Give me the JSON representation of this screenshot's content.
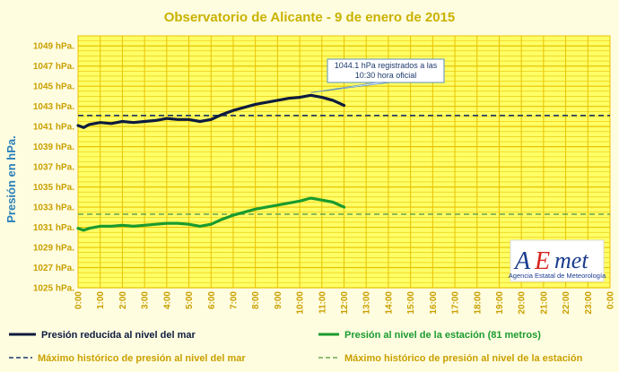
{
  "chart_data": {
    "type": "line",
    "title": "Observatorio de Alicante - 9 de enero de 2015",
    "ylabel": "Presión en hPa.",
    "y_ticks": [
      "1025 hPa.",
      "1027 hPa.",
      "1029 hPa.",
      "1031 hPa.",
      "1033 hPa.",
      "1035 hPa.",
      "1037 hPa.",
      "1039 hPa.",
      "1041 hPa.",
      "1043 hPa.",
      "1045 hPa.",
      "1047 hPa.",
      "1049 hPa."
    ],
    "x_ticks": [
      "0:00",
      "1:00",
      "2:00",
      "3:00",
      "4:00",
      "5:00",
      "6:00",
      "7:00",
      "8:00",
      "9:00",
      "10:00",
      "11:00",
      "12:00",
      "13:00",
      "14:00",
      "15:00",
      "16:00",
      "17:00",
      "18:00",
      "19:00",
      "20:00",
      "21:00",
      "22:00",
      "23:00",
      "0:00"
    ],
    "ylim": [
      1025,
      1050
    ],
    "xlim": [
      0,
      24
    ],
    "grid": true,
    "series": [
      {
        "name": "Presión reducida al nivel del mar",
        "color": "#0d1b3e",
        "style": "solid",
        "x": [
          0,
          0.25,
          0.5,
          1,
          1.5,
          2,
          2.5,
          3,
          3.5,
          4,
          4.5,
          5,
          5.5,
          6,
          6.5,
          7,
          7.5,
          8,
          8.5,
          9,
          9.5,
          10,
          10.5,
          11,
          11.5,
          12
        ],
        "values": [
          1041.1,
          1040.9,
          1041.2,
          1041.4,
          1041.3,
          1041.5,
          1041.4,
          1041.5,
          1041.6,
          1041.8,
          1041.7,
          1041.7,
          1041.5,
          1041.7,
          1042.2,
          1042.6,
          1042.9,
          1043.2,
          1043.4,
          1043.6,
          1043.8,
          1043.9,
          1044.1,
          1043.9,
          1043.6,
          1043.1
        ]
      },
      {
        "name": "Presión al nivel de la estación (81 metros)",
        "color": "#1a9b2e",
        "style": "solid",
        "x": [
          0,
          0.25,
          0.5,
          1,
          1.5,
          2,
          2.5,
          3,
          3.5,
          4,
          4.5,
          5,
          5.5,
          6,
          6.5,
          7,
          7.5,
          8,
          8.5,
          9,
          9.5,
          10,
          10.5,
          11,
          11.5,
          12
        ],
        "values": [
          1030.9,
          1030.7,
          1030.9,
          1031.1,
          1031.1,
          1031.2,
          1031.1,
          1031.2,
          1031.3,
          1031.4,
          1031.4,
          1031.3,
          1031.1,
          1031.3,
          1031.8,
          1032.2,
          1032.5,
          1032.8,
          1033.0,
          1033.2,
          1033.4,
          1033.6,
          1033.9,
          1033.7,
          1033.5,
          1033.0
        ]
      },
      {
        "name": "Máximo histórico de presión al nivel del mar",
        "color": "#1c3a6e",
        "style": "dashed",
        "x": [
          0,
          24
        ],
        "values": [
          1042.1,
          1042.1
        ]
      },
      {
        "name": "Máximo histórico de presión al nivel de la estación",
        "color": "#6fa84f",
        "style": "dashed",
        "x": [
          0,
          24
        ],
        "values": [
          1032.3,
          1032.3
        ]
      }
    ],
    "annotation": {
      "line1": "1044.1 hPa registrados a las",
      "line2": "10:30 hora oficial",
      "x": 10.5,
      "y": 1044.1
    },
    "colors": {
      "plot_background": "#ffff66",
      "grid": "#e7c200",
      "page_background": "#fffde0",
      "tick_text": "#c9a000"
    }
  },
  "logo": {
    "a": "A",
    "e": "E",
    "met": "met",
    "subtitle": "Agencia Estatal de Meteorología"
  }
}
